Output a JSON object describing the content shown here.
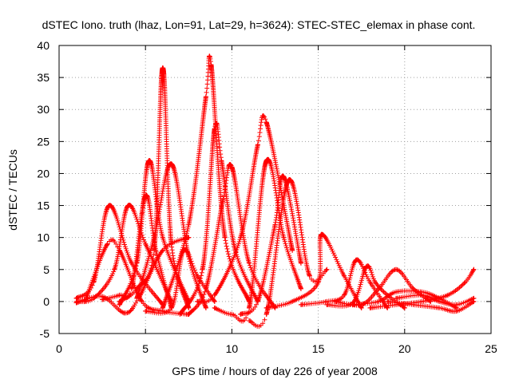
{
  "chart_data": {
    "type": "scatter",
    "title": "dSTEC Iono. truth (lhaz, Lon=91, Lat=29, h=3624): STEC-STEC_elemax in phase cont.",
    "xlabel": "GPS time / hours of day 226 of year 2008",
    "ylabel": "dSTEC  / TECUs",
    "xlim": [
      0,
      25
    ],
    "ylim": [
      -5,
      40
    ],
    "xticks": [
      0,
      5,
      10,
      15,
      20,
      25
    ],
    "yticks": [
      -5,
      0,
      5,
      10,
      15,
      20,
      25,
      30,
      35,
      40
    ],
    "grid": true,
    "marker": "+",
    "color": "#ff0000",
    "series": [
      {
        "x": [
          1.0,
          2.0,
          2.9,
          4.2,
          6.0
        ],
        "y": [
          0.5,
          3.0,
          15.0,
          6.0,
          -0.5
        ]
      },
      {
        "x": [
          1.0,
          2.5,
          3.8,
          4.6,
          6.0,
          7.5
        ],
        "y": [
          -0.2,
          0.8,
          -1.8,
          0.5,
          8.0,
          10.0
        ]
      },
      {
        "x": [
          1.0,
          2.0,
          3.2,
          4.0,
          5.0,
          6.5
        ],
        "y": [
          0.0,
          0.5,
          5.0,
          15.0,
          9.0,
          0.0
        ]
      },
      {
        "x": [
          1.5,
          2.8,
          3.5,
          4.8,
          6.0,
          7.5
        ],
        "y": [
          0.0,
          9.0,
          8.0,
          0.0,
          -1.5,
          -2.0
        ]
      },
      {
        "x": [
          2.5,
          3.5,
          4.2,
          5.0,
          5.6,
          6.5
        ],
        "y": [
          0.3,
          1.0,
          2.0,
          16.5,
          8.0,
          -1.0
        ]
      },
      {
        "x": [
          3.5,
          4.5,
          5.2,
          6.0,
          7.5
        ],
        "y": [
          -0.5,
          6.0,
          22.0,
          10.0,
          0.0
        ]
      },
      {
        "x": [
          3.5,
          4.5,
          5.5,
          6.0,
          6.5,
          7.5
        ],
        "y": [
          0.0,
          2.0,
          8.0,
          36.5,
          9.0,
          -1.0
        ]
      },
      {
        "x": [
          4.5,
          5.5,
          6.5,
          7.5,
          8.5
        ],
        "y": [
          0.5,
          10.0,
          21.5,
          7.0,
          -1.0
        ]
      },
      {
        "x": [
          5.0,
          6.5,
          7.2,
          8.0,
          9.0
        ],
        "y": [
          -1.5,
          -1.0,
          8.0,
          4.0,
          0.0
        ]
      },
      {
        "x": [
          6.0,
          7.5,
          8.5,
          8.8,
          9.6,
          11.0
        ],
        "y": [
          -1.0,
          12.0,
          32.0,
          37.0,
          10.0,
          0.0
        ]
      },
      {
        "x": [
          7.0,
          8.3,
          9.0,
          9.4,
          10.2,
          11.5
        ],
        "y": [
          -2.0,
          5.0,
          27.0,
          22.0,
          8.0,
          0.0
        ]
      },
      {
        "x": [
          7.5,
          8.5,
          9.5,
          10.0,
          11.0,
          12.5
        ],
        "y": [
          -2.0,
          2.0,
          16.0,
          21.0,
          6.0,
          -1.0
        ]
      },
      {
        "x": [
          8.0,
          9.0,
          10.5,
          11.5,
          12.0,
          13.5
        ],
        "y": [
          0.0,
          1.0,
          10.0,
          24.5,
          28.0,
          8.0
        ]
      },
      {
        "x": [
          9.0,
          10.0,
          11.0,
          12.0,
          13.0,
          14.0
        ],
        "y": [
          -1.0,
          -2.0,
          -1.0,
          22.0,
          10.0,
          2.0
        ]
      },
      {
        "x": [
          10.5,
          11.5,
          12.5,
          13.0,
          14.0
        ],
        "y": [
          -2.0,
          0.0,
          12.0,
          19.5,
          6.0
        ]
      },
      {
        "x": [
          11.0,
          12.0,
          13.3,
          14.5,
          15.5
        ],
        "y": [
          -3.0,
          -2.0,
          19.0,
          4.0,
          5.0
        ]
      },
      {
        "x": [
          12.0,
          13.5,
          15.0,
          15.2,
          16.5,
          17.5
        ],
        "y": [
          -1.0,
          0.0,
          3.0,
          10.5,
          4.0,
          -1.0
        ]
      },
      {
        "x": [
          14.0,
          15.5,
          16.5,
          17.2,
          18.0,
          19.0
        ],
        "y": [
          -0.5,
          0.0,
          1.0,
          6.5,
          3.0,
          -1.0
        ]
      },
      {
        "x": [
          15.5,
          17.0,
          17.8,
          18.3,
          19.0,
          20.0
        ],
        "y": [
          -0.5,
          -0.2,
          5.5,
          3.0,
          1.0,
          -1.0
        ]
      },
      {
        "x": [
          16.0,
          17.5,
          18.5,
          19.5,
          20.5,
          21.5
        ],
        "y": [
          0.0,
          -0.5,
          2.0,
          5.0,
          2.0,
          0.0
        ]
      },
      {
        "x": [
          17.0,
          18.5,
          19.5,
          21.0,
          22.0,
          23.0
        ],
        "y": [
          -0.5,
          0.0,
          1.5,
          1.5,
          0.5,
          -1.0
        ]
      },
      {
        "x": [
          18.0,
          19.5,
          21.0,
          22.5,
          23.5,
          24.0
        ],
        "y": [
          -1.0,
          -0.5,
          0.0,
          1.0,
          3.0,
          5.0
        ]
      },
      {
        "x": [
          19.0,
          20.5,
          22.0,
          23.0,
          24.0
        ],
        "y": [
          0.0,
          -0.5,
          -1.0,
          -1.5,
          0.0
        ]
      },
      {
        "x": [
          19.5,
          21.0,
          22.0,
          23.0,
          24.0
        ],
        "y": [
          0.5,
          1.0,
          0.0,
          -0.5,
          0.5
        ]
      }
    ]
  }
}
